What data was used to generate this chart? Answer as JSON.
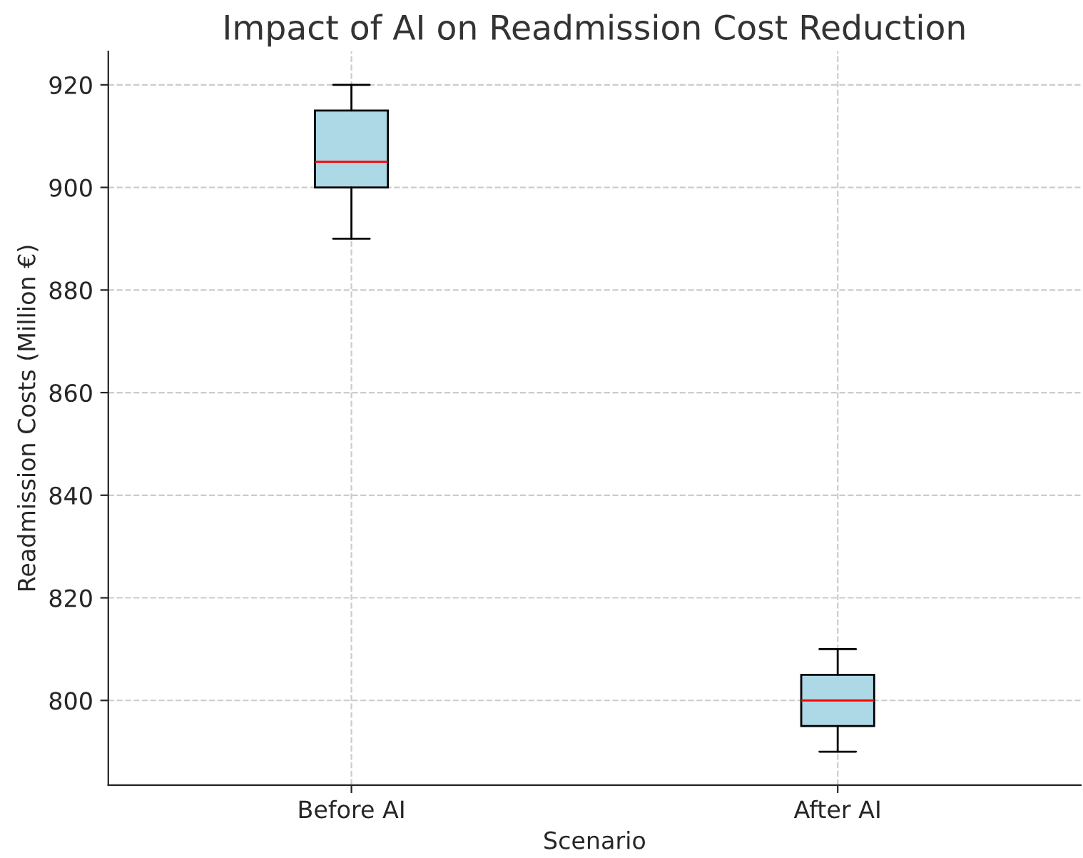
{
  "chart_data": {
    "type": "box",
    "title": "Impact of AI on Readmission Cost Reduction",
    "xlabel": "Scenario",
    "ylabel": "Readmission Costs (Million €)",
    "categories": [
      "Before AI",
      "After AI"
    ],
    "series": [
      {
        "color": "#add8e6",
        "boxes": [
          {
            "low": 890,
            "q1": 900,
            "median": 905,
            "q3": 915,
            "high": 920
          },
          {
            "low": 790,
            "q1": 795,
            "median": 800,
            "q3": 805,
            "high": 810
          }
        ]
      }
    ],
    "ylim": [
      783.5,
      926.5
    ],
    "yticks": [
      800,
      820,
      840,
      860,
      880,
      900,
      920
    ],
    "grid": true,
    "line_style": "dashed"
  }
}
